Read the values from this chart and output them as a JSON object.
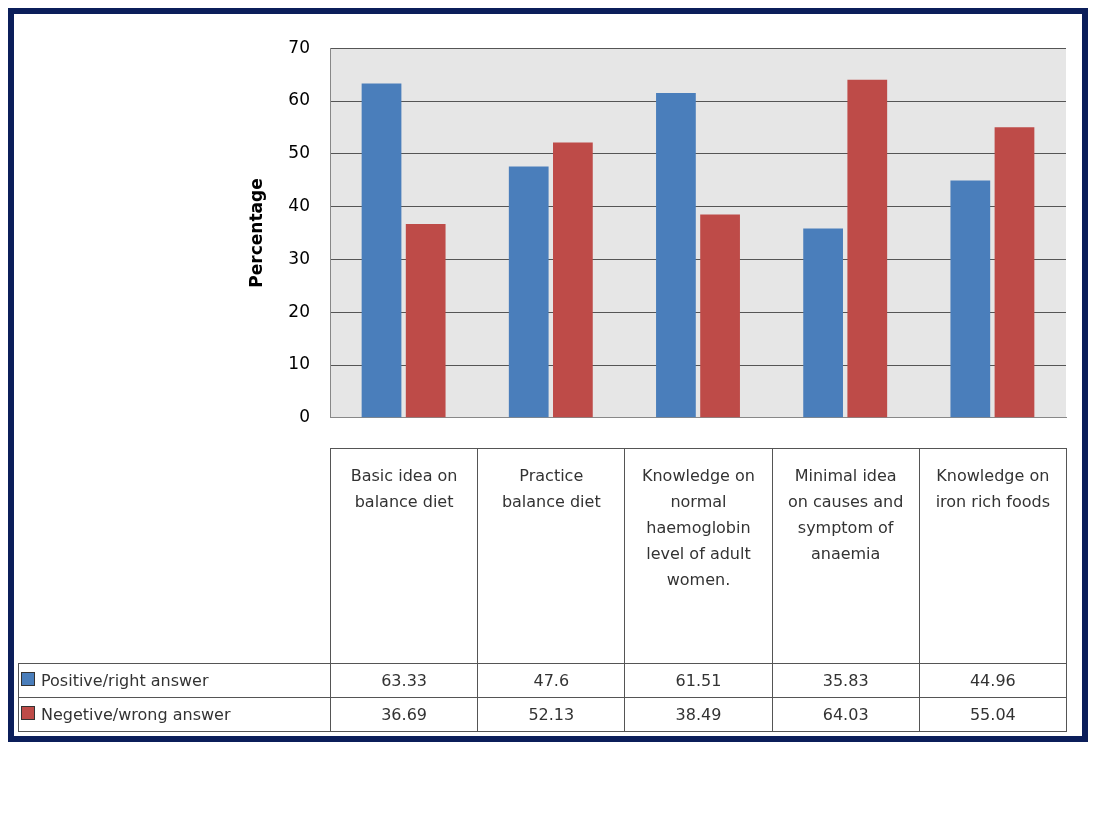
{
  "chart_data": {
    "type": "bar",
    "ylabel": "Percentage",
    "categories": [
      "Basic idea on balance diet",
      "Practice balance diet",
      "Knowledge on normal haemoglobin level of adult women.",
      "Minimal idea on causes and symptom of anaemia",
      "Knowledge on iron rich foods"
    ],
    "series": [
      {
        "name": "Positive/right answer",
        "color": "#4a7ebb",
        "values": [
          63.33,
          47.6,
          61.51,
          35.83,
          44.96
        ]
      },
      {
        "name": "Negetive/wrong answer",
        "color": "#be4b48",
        "values": [
          36.69,
          52.13,
          38.49,
          64.03,
          55.04
        ]
      }
    ],
    "ylim": [
      0,
      70
    ],
    "yticks": [
      0,
      10,
      20,
      30,
      40,
      50,
      60,
      70
    ],
    "grid": "y",
    "legend": "bottom",
    "data_labels": true
  }
}
